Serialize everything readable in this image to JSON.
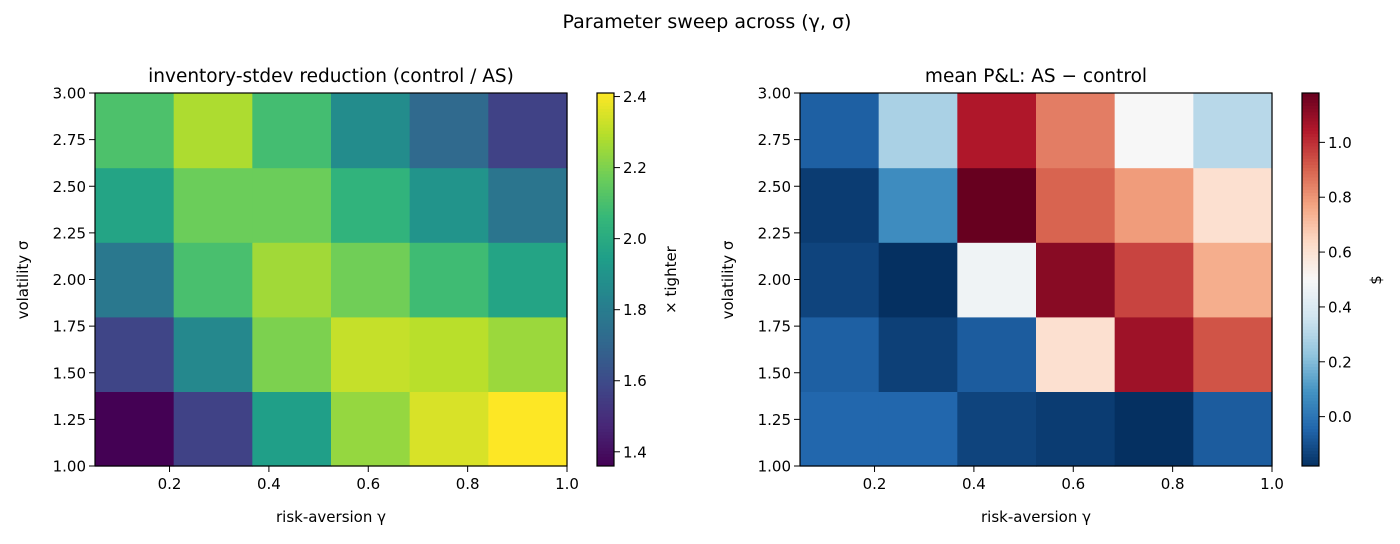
{
  "figure": {
    "suptitle": "Parameter sweep across (γ, σ)"
  },
  "chart_data": [
    {
      "type": "heatmap",
      "title": "inventory-stdev reduction  (control / AS)",
      "xlabel": "risk-aversion γ",
      "ylabel": "volatility σ",
      "colorbar_label": "× tighter",
      "colormap": "viridis",
      "xlim": [
        0.05,
        1.0
      ],
      "ylim": [
        1.0,
        3.0
      ],
      "xticks": [
        0.2,
        0.4,
        0.6,
        0.8,
        1.0
      ],
      "xtick_labels": [
        "0.2",
        "0.4",
        "0.6",
        "0.8",
        "1.0"
      ],
      "yticks": [
        1.0,
        1.25,
        1.5,
        1.75,
        2.0,
        2.25,
        2.5,
        2.75,
        3.0
      ],
      "ytick_labels": [
        "1.00",
        "1.25",
        "1.50",
        "1.75",
        "2.00",
        "2.25",
        "2.50",
        "2.75",
        "3.00"
      ],
      "clim": [
        1.36,
        2.41
      ],
      "cbar_ticks": [
        1.4,
        1.6,
        1.8,
        2.0,
        2.2,
        2.4
      ],
      "cbar_tick_labels": [
        "1.4",
        "1.6",
        "1.8",
        "2.0",
        "2.2",
        "2.4"
      ],
      "x_centers": [
        0.1,
        0.3,
        0.4,
        0.6,
        0.8,
        0.9
      ],
      "y_centers": [
        1.1,
        1.5,
        2.0,
        2.4,
        2.8
      ],
      "values": [
        [
          1.36,
          1.57,
          1.95,
          2.24,
          2.35,
          2.41
        ],
        [
          1.58,
          1.85,
          2.2,
          2.32,
          2.3,
          2.25
        ],
        [
          1.78,
          2.1,
          2.26,
          2.18,
          2.08,
          1.97
        ],
        [
          1.97,
          2.17,
          2.17,
          2.04,
          1.9,
          1.77
        ],
        [
          2.11,
          2.28,
          2.09,
          1.87,
          1.72,
          1.57
        ]
      ]
    },
    {
      "type": "heatmap",
      "title": "mean P&L:  AS − control",
      "xlabel": "risk-aversion γ",
      "ylabel": "volatility σ",
      "colorbar_label": "$",
      "colormap": "RdBu_r",
      "xlim": [
        0.05,
        1.0
      ],
      "ylim": [
        1.0,
        3.0
      ],
      "xticks": [
        0.2,
        0.4,
        0.6,
        0.8,
        1.0
      ],
      "xtick_labels": [
        "0.2",
        "0.4",
        "0.6",
        "0.8",
        "1.0"
      ],
      "yticks": [
        1.0,
        1.25,
        1.5,
        1.75,
        2.0,
        2.25,
        2.5,
        2.75,
        3.0
      ],
      "ytick_labels": [
        "1.00",
        "1.25",
        "1.50",
        "1.75",
        "2.00",
        "2.25",
        "2.50",
        "2.75",
        "3.00"
      ],
      "clim": [
        -0.18,
        1.18
      ],
      "cbar_ticks": [
        0.0,
        0.2,
        0.4,
        0.6,
        0.8,
        1.0
      ],
      "cbar_tick_labels": [
        "0.0",
        "0.2",
        "0.4",
        "0.6",
        "0.8",
        "1.0"
      ],
      "x_centers": [
        0.1,
        0.3,
        0.4,
        0.6,
        0.8,
        0.9
      ],
      "y_centers": [
        1.1,
        1.5,
        2.0,
        2.4,
        2.8
      ],
      "values": [
        [
          -0.04,
          -0.04,
          -0.13,
          -0.15,
          -0.18,
          -0.07
        ],
        [
          -0.06,
          -0.14,
          -0.07,
          0.61,
          1.08,
          0.93
        ],
        [
          -0.13,
          -0.18,
          0.47,
          1.12,
          0.96,
          0.75
        ],
        [
          -0.15,
          0.07,
          1.18,
          0.9,
          0.79,
          0.61
        ],
        [
          -0.06,
          0.28,
          1.05,
          0.85,
          0.5,
          0.31
        ]
      ]
    }
  ]
}
